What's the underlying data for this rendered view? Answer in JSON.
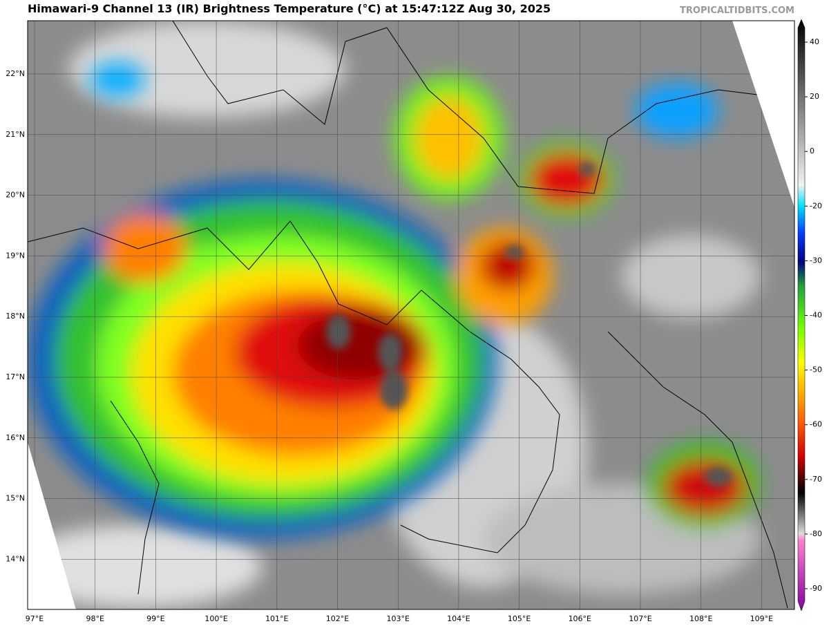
{
  "header": {
    "title": "Himawari-9 Channel 13 (IR) Brightness Temperature (°C) at 15:47:12Z Aug 30, 2025",
    "source": "TROPICALTIDBITS.COM"
  },
  "map": {
    "lat_labels": [
      "22°N",
      "21°N",
      "20°N",
      "19°N",
      "18°N",
      "17°N",
      "16°N",
      "15°N",
      "14°N"
    ],
    "lon_labels": [
      "97°E",
      "98°E",
      "99°E",
      "100°E",
      "101°E",
      "102°E",
      "103°E",
      "104°E",
      "105°E",
      "106°E",
      "107°E",
      "108°E",
      "109°E"
    ]
  },
  "colorbar": {
    "ticks": [
      40,
      20,
      0,
      -20,
      -30,
      -40,
      -50,
      -60,
      -70,
      -80,
      -90
    ]
  }
}
